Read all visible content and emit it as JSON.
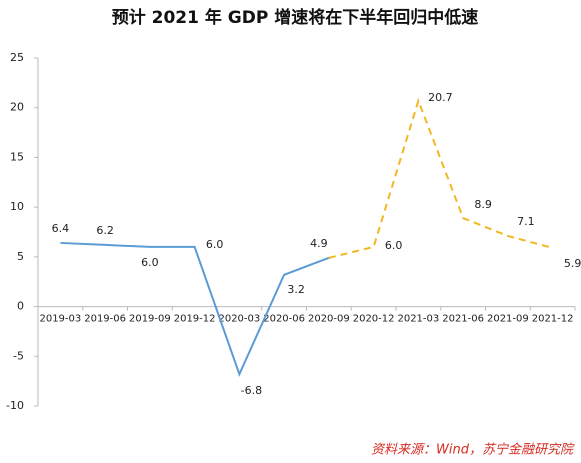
{
  "chart_data": {
    "type": "line",
    "title": "预计 2021 年 GDP 增速将在下半年回归中低速",
    "categories": [
      "2019-03",
      "2019-06",
      "2019-09",
      "2019-12",
      "2020-03",
      "2020-06",
      "2020-09",
      "2020-12",
      "2021-03",
      "2021-06",
      "2021-09",
      "2021-12"
    ],
    "series": [
      {
        "color": "#5b9bd5",
        "dashed": false,
        "values": [
          6.4,
          6.2,
          6.0,
          6.0,
          -6.8,
          3.2,
          4.9,
          null,
          null,
          null,
          null,
          null
        ],
        "value_labels": [
          "6.4",
          "6.2",
          "6.0",
          "6.0",
          "-6.8",
          "3.2",
          "4.9",
          null,
          null,
          null,
          null,
          null
        ]
      },
      {
        "color": "#f2b824",
        "dashed": true,
        "values": [
          null,
          null,
          null,
          null,
          null,
          null,
          4.9,
          6.0,
          20.7,
          8.9,
          7.1,
          5.9
        ],
        "value_labels": [
          null,
          null,
          null,
          null,
          null,
          null,
          null,
          "6.0",
          "20.7",
          "8.9",
          "7.1",
          "5.9"
        ]
      }
    ],
    "ylim": [
      -10,
      25
    ],
    "yticks": [
      -10,
      -5,
      0,
      5,
      10,
      15,
      20,
      25
    ],
    "grid": false,
    "source": "资料来源：Wind，苏宁金融研究院"
  }
}
